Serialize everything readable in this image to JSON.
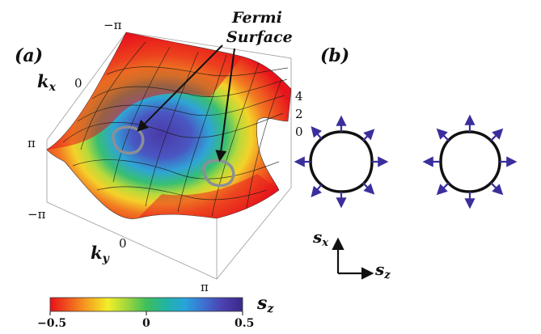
{
  "panel_a": {
    "label": "(a)",
    "kx_label": "k",
    "kx_sub": "x",
    "ky_label": "k",
    "ky_sub": "y",
    "kx_ticks": [
      "−π",
      "0",
      "π"
    ],
    "ky_ticks": [
      "−π",
      "0",
      "π"
    ],
    "z_ticks": [
      "4",
      "2",
      "0"
    ],
    "annotation_line1": "Fermi",
    "annotation_line2": "Surface"
  },
  "panel_b": {
    "label": "(b)",
    "axis_y_label": "s",
    "axis_y_sub": "x",
    "axis_x_label": "s",
    "axis_x_sub": "z"
  },
  "colorbar": {
    "label": "s",
    "label_sub": "z",
    "ticks": [
      "−0.5",
      "0",
      "0.5"
    ],
    "colors": [
      "#e8101a",
      "#f05a1e",
      "#f5a620",
      "#f2ee2a",
      "#9fd63c",
      "#3fbf5a",
      "#22b3a4",
      "#27a4dc",
      "#3f6fd0",
      "#4b3fae",
      "#3a2a8a"
    ]
  },
  "colors": {
    "arrow": "#3a2f9c",
    "fermi": "#8a8f96",
    "contour": "#111111"
  }
}
